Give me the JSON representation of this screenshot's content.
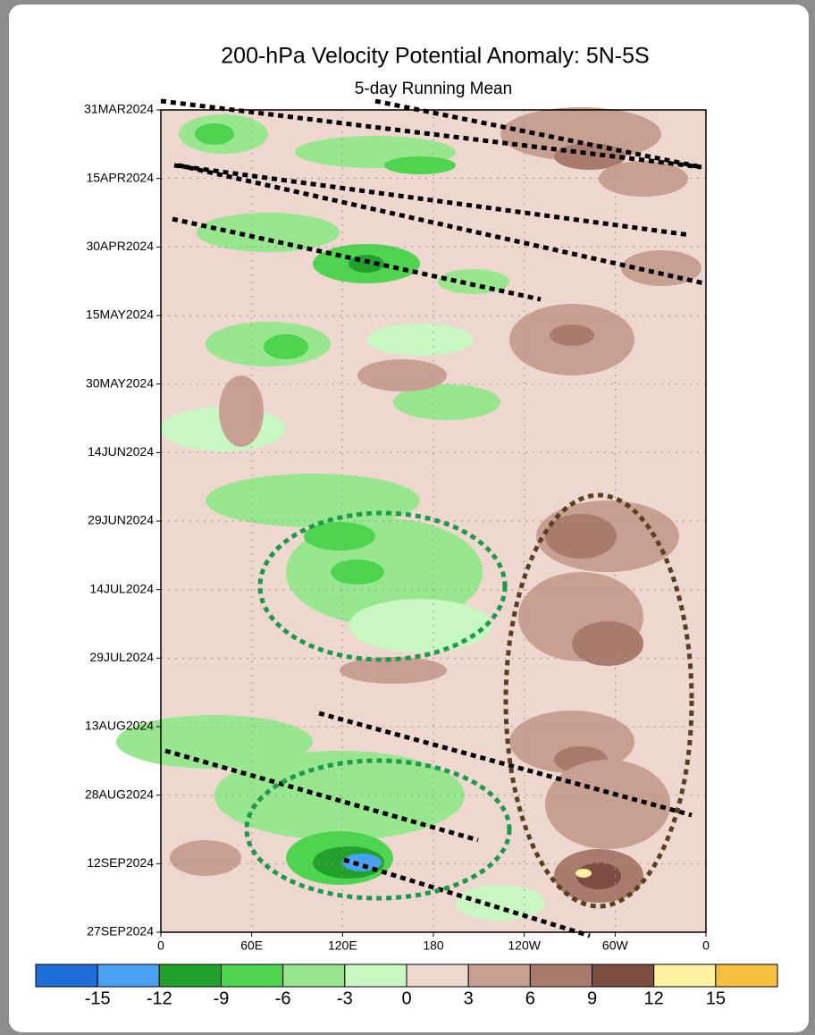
{
  "chart_data": {
    "type": "hovmoller",
    "title": "200-hPa Velocity Potential Anomaly: 5N-5S",
    "subtitle": "5-day Running Mean",
    "y_categories": [
      "31MAR2024",
      "15APR2024",
      "30APR2024",
      "15MAY2024",
      "30MAY2024",
      "14JUN2024",
      "29JUN2024",
      "14JUL2024",
      "29JUL2024",
      "13AUG2024",
      "28AUG2024",
      "12SEP2024",
      "27SEP2024"
    ],
    "xlim": [
      0,
      360
    ],
    "xticks": [
      0,
      {
        "value": 60,
        "label": "60E"
      },
      {
        "value": 120,
        "label": "120E"
      },
      180,
      {
        "value": 240,
        "label": "120W"
      },
      {
        "value": 300,
        "label": "60W"
      },
      {
        "value": 360,
        "label": "0"
      }
    ],
    "grid": true,
    "colorbar": {
      "levels": [
        -15,
        -12,
        -9,
        -6,
        -3,
        0,
        3,
        6,
        9,
        12,
        15
      ],
      "colors": [
        "#1f6fd8",
        "#4aa0f2",
        "#22a02c",
        "#4fd44f",
        "#98e68e",
        "#c9f7c1",
        "#edd7cf",
        "#c8a092",
        "#a87b6d",
        "#7b4d41",
        "#fff1a2",
        "#f7bf3e"
      ]
    }
  }
}
